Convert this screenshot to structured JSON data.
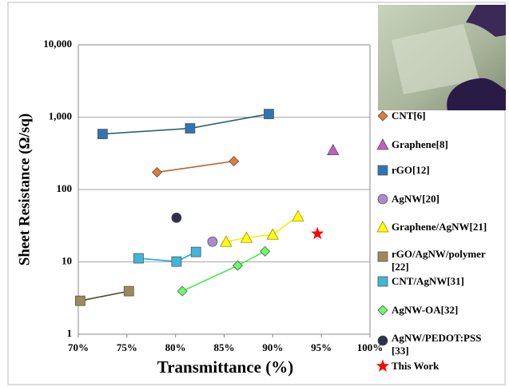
{
  "chart_data": {
    "type": "scatter",
    "xlabel": "Transmittance (%)",
    "ylabel": "Sheet Resistance (Ω/sq)",
    "xlim": [
      70,
      100
    ],
    "ylim": [
      1,
      10000
    ],
    "ylog": true,
    "grid": true,
    "xticks": [
      {
        "value": 70,
        "label": "70%"
      },
      {
        "value": 75,
        "label": "75%"
      },
      {
        "value": 80,
        "label": "80%"
      },
      {
        "value": 85,
        "label": "85%"
      },
      {
        "value": 90,
        "label": "90%"
      },
      {
        "value": 95,
        "label": "95%"
      },
      {
        "value": 100,
        "label": "100%"
      }
    ],
    "yticks": [
      1,
      10,
      100,
      {
        "value": 1000,
        "label": "1,000"
      },
      {
        "value": 10000,
        "label": "10,000"
      }
    ],
    "legend": "right",
    "series": [
      {
        "name": "CNT[6]",
        "marker": "diamond",
        "color": "#e07b39",
        "line_color": "#c0622a",
        "x": [
          78.1,
          86.0
        ],
        "values": [
          173,
          246
        ]
      },
      {
        "name": "Graphene[8]",
        "marker": "triangle",
        "color": "#c45ec4",
        "x": [
          96.2
        ],
        "values": [
          352
        ]
      },
      {
        "name": "rGO[12]",
        "marker": "square",
        "color": "#2e75b6",
        "line_color": "#2b6273",
        "x": [
          72.5,
          81.5,
          89.6
        ],
        "values": [
          585,
          700,
          1105
        ]
      },
      {
        "name": "AgNW[20]",
        "marker": "circle",
        "color": "#a88bd0",
        "x": [
          83.8
        ],
        "values": [
          19
        ]
      },
      {
        "name": "Graphene/AgNW[21]",
        "marker": "triangle",
        "color": "#ffff00",
        "line_color": "#f5f000",
        "x": [
          85.2,
          87.3,
          90.0,
          92.6
        ],
        "values": [
          19,
          21.6,
          23.9,
          42.8
        ]
      },
      {
        "name": "rGO/AgNW/polymer [22]",
        "marker": "square",
        "color": "#9c8b5a",
        "line_color": "#4a4a2a",
        "x": [
          70.2,
          75.2
        ],
        "values": [
          2.9,
          3.94
        ]
      },
      {
        "name": "CNT/AgNW[31]",
        "marker": "square",
        "color": "#3fb7d8",
        "line_color": "#1fa8dc",
        "x": [
          76.2,
          80.1,
          82.1
        ],
        "values": [
          11.2,
          10.1,
          13.7
        ]
      },
      {
        "name": "AgNW-OA[32]",
        "marker": "diamond",
        "color": "#66ff66",
        "line_color": "#44ee44",
        "x": [
          80.7,
          86.4,
          89.2
        ],
        "values": [
          3.94,
          8.9,
          14
        ]
      },
      {
        "name": "AgNW/PEDOT:PSS [33]",
        "marker": "circle",
        "color": "#2f2f4f",
        "x": [
          80.1
        ],
        "values": [
          40.7
        ]
      },
      {
        "name": "This Work",
        "marker": "star",
        "color": "#ff0000",
        "x": [
          94.6
        ],
        "values": [
          24.5
        ]
      }
    ]
  }
}
